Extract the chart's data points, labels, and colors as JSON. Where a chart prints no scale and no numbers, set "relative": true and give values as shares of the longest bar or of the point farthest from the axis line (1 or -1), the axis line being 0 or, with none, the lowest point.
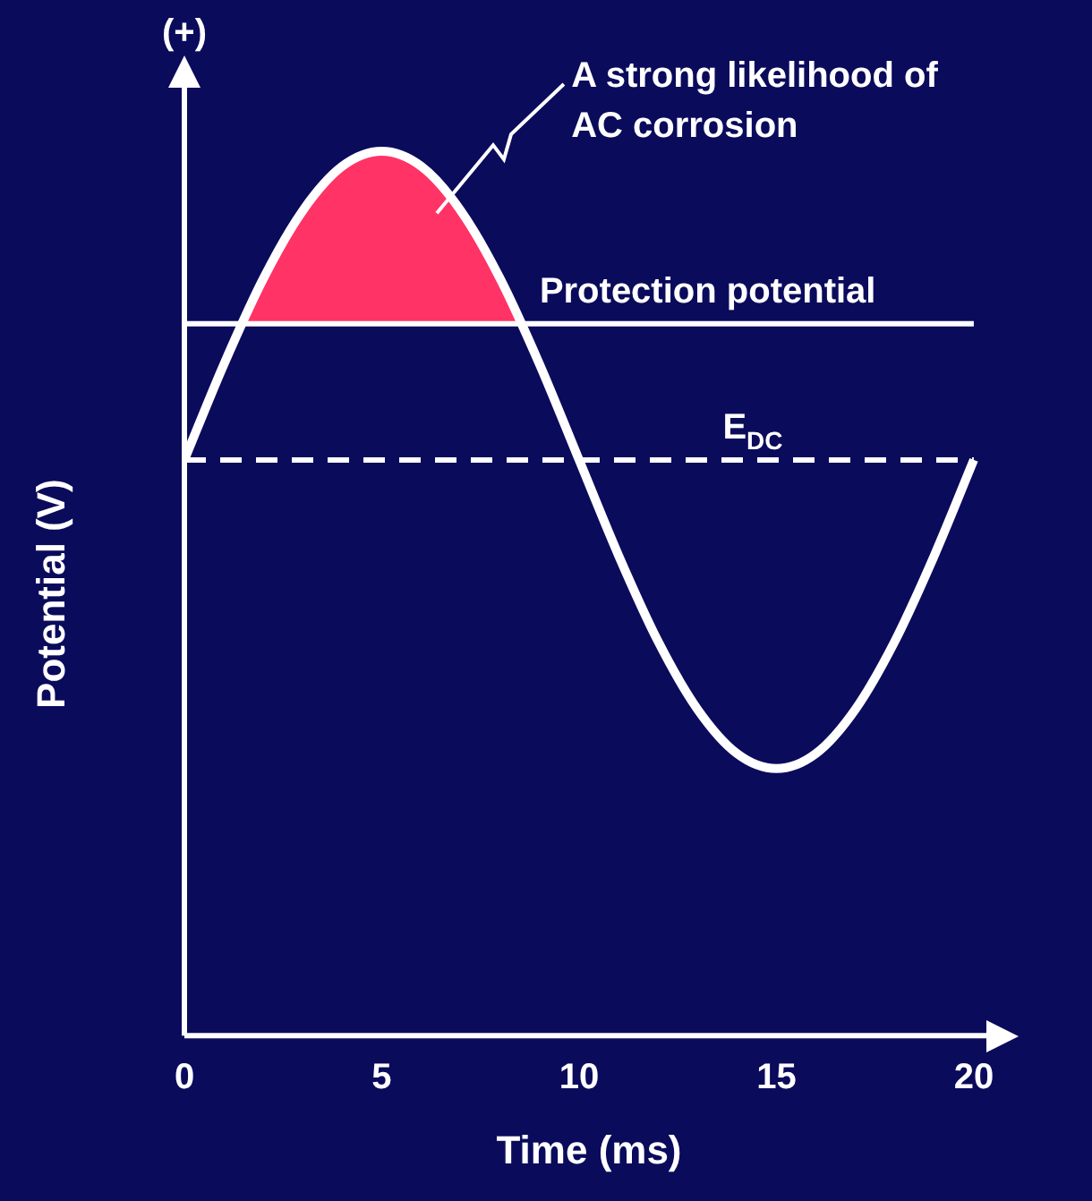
{
  "chart_data": {
    "type": "line",
    "xlabel": "Time (ms)",
    "ylabel": "Potential (V)",
    "relative": true,
    "x": [
      0,
      1,
      2,
      3,
      4,
      5,
      6,
      7,
      8,
      9,
      10,
      11,
      12,
      13,
      14,
      15,
      16,
      17,
      18,
      19,
      20
    ],
    "xlim": [
      0,
      20.5
    ],
    "xticks": [
      0,
      5,
      10,
      15,
      20
    ],
    "tick_labels": "x",
    "grid": false,
    "legend": false,
    "marker": "none",
    "series": [
      {
        "color": "#ffffff",
        "values": [
          0.651,
          0.759,
          0.856,
          0.933,
          0.983,
          1.0,
          0.983,
          0.933,
          0.856,
          0.759,
          0.651,
          0.543,
          0.446,
          0.369,
          0.319,
          0.302,
          0.319,
          0.369,
          0.446,
          0.543,
          0.651
        ]
      },
      {
        "type": "area",
        "color": "#ff3366",
        "x": [
          1.45,
          2,
          3,
          4,
          5,
          6,
          7,
          8,
          8.55
        ],
        "values": [
          0.805,
          0.856,
          0.933,
          0.983,
          1.0,
          0.983,
          0.933,
          0.856,
          0.805
        ]
      }
    ],
    "ref_lines": [
      {
        "axis": "y",
        "value": 0.805,
        "label": "Protection potential",
        "color": "#ffffff",
        "line_style": "solid"
      },
      {
        "axis": "y",
        "value": 0.651,
        "label": "E$_{DC}$",
        "color": "#ffffff",
        "line_style": "dashed"
      }
    ],
    "annotations": [
      "(+)",
      "A strong likelihood of AC corrosion"
    ]
  }
}
